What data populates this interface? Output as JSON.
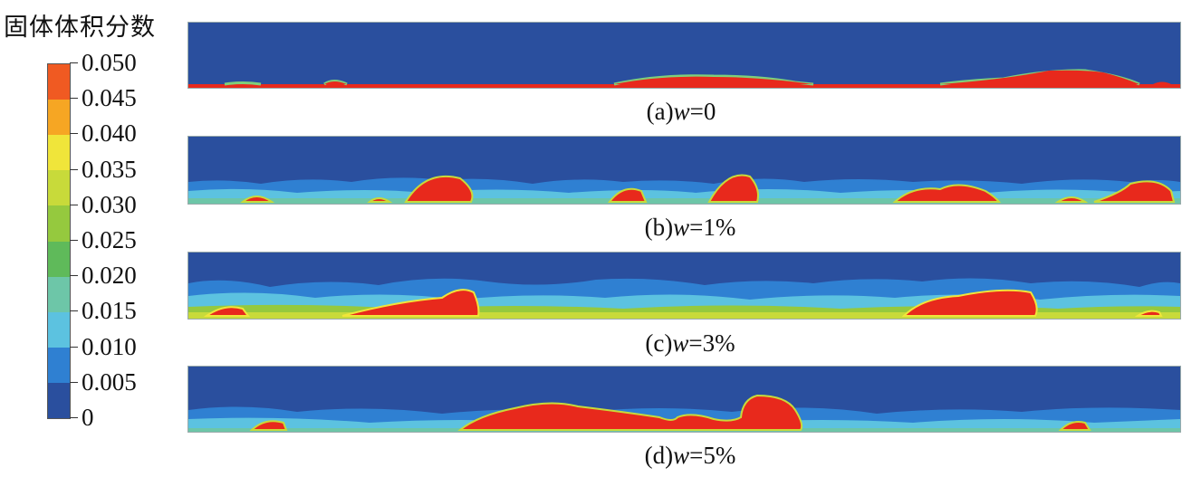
{
  "legend": {
    "title": "固体体积分数",
    "ticks": [
      "0.050",
      "0.045",
      "0.040",
      "0.035",
      "0.030",
      "0.025",
      "0.020",
      "0.015",
      "0.010",
      "0.005",
      "0"
    ],
    "colors": [
      "#2a4f9e",
      "#2f80d2",
      "#5cc2e0",
      "#6dc6a8",
      "#5fba5a",
      "#95c93e",
      "#c8da3a",
      "#f0e53a",
      "#f6a623",
      "#f05a22",
      "#e8291c"
    ]
  },
  "panels": [
    {
      "prefix": "(a)",
      "var": "w",
      "suffix": "=0"
    },
    {
      "prefix": "(b)",
      "var": "w",
      "suffix": "=1%"
    },
    {
      "prefix": "(c)",
      "var": "w",
      "suffix": "=3%"
    },
    {
      "prefix": "(d)",
      "var": "w",
      "suffix": "=5%"
    }
  ]
}
